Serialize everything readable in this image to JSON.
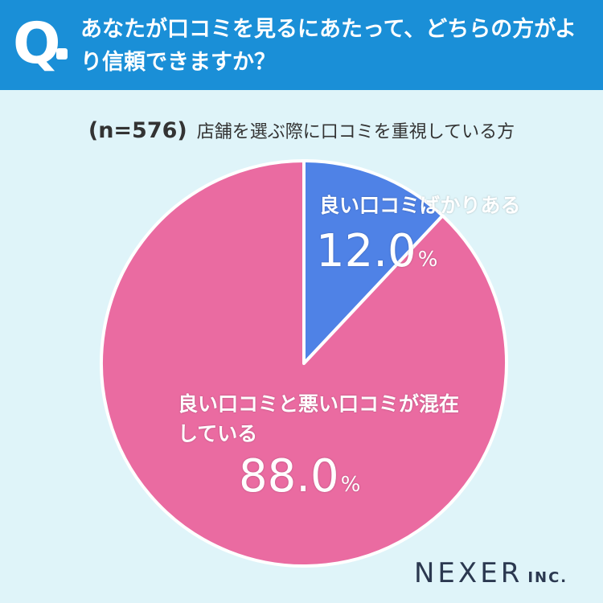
{
  "header": {
    "q_label": "Q",
    "question": "あなたが口コミを見るにあたって、どちらの方がより信頼できますか？"
  },
  "subtitle": {
    "sample": "(n=576)",
    "text": "店舗を選ぶ際に口コミを重視している方"
  },
  "colors": {
    "header_bg": "#1a8fd7",
    "background": "#dff4f9",
    "slice_good_only": "#4f82e6",
    "slice_mixed": "#ea6ba1"
  },
  "chart_data": {
    "type": "pie",
    "slices": [
      {
        "label": "良い口コミばかりある",
        "value": 12.0,
        "display": "12.0",
        "color": "#4f82e6"
      },
      {
        "label": "良い口コミと悪い口コミが混在している",
        "value": 88.0,
        "display": "88.0",
        "color": "#ea6ba1"
      }
    ],
    "unit": "%"
  },
  "footer": {
    "brand": "NEXER",
    "suffix": "INC."
  }
}
